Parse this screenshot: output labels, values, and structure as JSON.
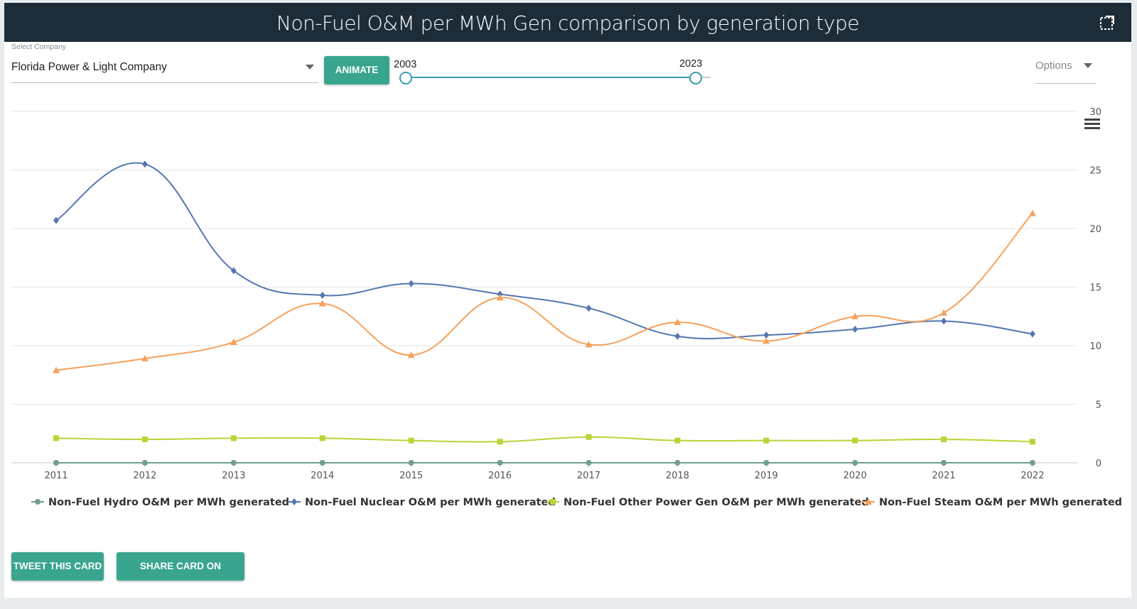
{
  "header": {
    "title": "Non-Fuel O&M per MWh Gen comparison by generation type",
    "expand_icon": "fullscreen-icon"
  },
  "controls": {
    "select_label": "Select Company",
    "select_value": "Florida Power & Light Company",
    "animate_label": "ANIMATE",
    "slider_start": "2003",
    "slider_end": "2023",
    "options_label": "Options"
  },
  "footer": {
    "tweet_label": "TWEET THIS CARD",
    "share_label": "SHARE CARD ON LINKEDIN"
  },
  "colors": {
    "header_bg": "#1c2c39",
    "button": "#3aa58f"
  },
  "chart_data": {
    "type": "line",
    "title": "",
    "xlabel": "",
    "ylabel": "",
    "categories": [
      "2011",
      "2012",
      "2013",
      "2014",
      "2015",
      "2016",
      "2017",
      "2018",
      "2019",
      "2020",
      "2021",
      "2022"
    ],
    "ylim": [
      0,
      30
    ],
    "yticks": [
      0,
      5,
      10,
      15,
      20,
      25,
      30
    ],
    "grid": true,
    "legend_position": "bottom",
    "menu_icon": "hamburger-menu-icon",
    "series": [
      {
        "name": "Non-Fuel Hydro O&M per MWh generated",
        "color": "#6fa08a",
        "marker": "circle",
        "values": [
          0,
          0,
          0,
          0,
          0,
          0,
          0,
          0,
          0,
          0,
          0,
          0
        ]
      },
      {
        "name": "Non-Fuel Nuclear O&M per MWh generated",
        "color": "#5577b0",
        "marker": "diamond",
        "values": [
          20.7,
          25.5,
          16.4,
          14.3,
          15.3,
          14.4,
          13.2,
          10.8,
          10.9,
          11.4,
          12.1,
          11.0
        ]
      },
      {
        "name": "Non-Fuel Other Power Gen O&M per MWh generated",
        "color": "#bcd236",
        "marker": "square",
        "values": [
          2.1,
          2.0,
          2.1,
          2.1,
          1.9,
          1.8,
          2.2,
          1.9,
          1.9,
          1.9,
          2.0,
          1.8
        ]
      },
      {
        "name": "Non-Fuel Steam O&M per MWh generated",
        "color": "#f5a15c",
        "marker": "triangle",
        "values": [
          7.9,
          8.9,
          10.3,
          13.6,
          9.2,
          14.1,
          10.1,
          12.0,
          10.4,
          12.5,
          12.8,
          21.3
        ]
      }
    ]
  }
}
